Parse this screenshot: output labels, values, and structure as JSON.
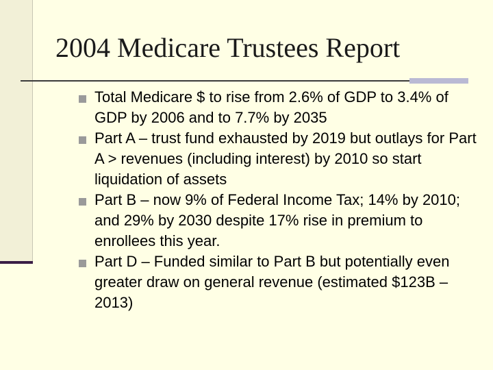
{
  "slide": {
    "title": "2004 Medicare Trustees Report",
    "bullets": [
      {
        "text": "Total Medicare $ to rise from 2.6% of GDP to 3.4% of GDP by 2006 and to 7.7% by 2035"
      },
      {
        "text": "Part A – trust fund exhausted by 2019 but outlays for Part A > revenues (including interest) by 2010 so start liquidation of assets"
      },
      {
        "text": "Part B – now 9% of Federal Income Tax; 14% by 2010; and 29% by 2030 despite 17% rise in premium to enrollees this year."
      },
      {
        "text": "Part D – Funded similar to Part B but potentially even greater draw on general revenue (estimated $123B – 2013)"
      }
    ]
  },
  "colors": {
    "background": "#FFFFE5",
    "left_band": "#F2F0D7",
    "accent_dark": "#3A1E45",
    "accent_light": "#B9B9D4",
    "bullet_marker": "#9A9A9A"
  }
}
